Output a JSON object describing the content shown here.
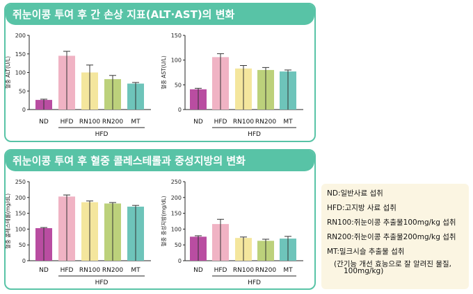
{
  "sections": [
    {
      "title": "쥐눈이콩 투여 후 간 손상 지표(ALT·AST)의 변화"
    },
    {
      "title": "쥐눈이콩 투여 후 혈중 콜레스테롤과 중성지방의 변화"
    }
  ],
  "legend": {
    "items": [
      "ND:일반사료 섭취",
      "HFD:고지방 사료 섭취",
      "RN100:쥐눈이콩 추출물100mg/kg 섭취",
      "RN200:쥐눈이콩 추출물200mg/kg 섭취",
      "MT:밀크시슬 추출물 섭취"
    ],
    "mt_note_1": "(간기능 개선 효능으로 잘 알려진 물질,",
    "mt_note_2": "100mg/kg)"
  },
  "chart_data": [
    {
      "type": "bar",
      "ylabel": "혈중 ALT(U/L)",
      "ylim": [
        0,
        200
      ],
      "yticks": [
        "0",
        "50",
        "100",
        "150",
        "200"
      ],
      "categories": [
        "ND",
        "HFD",
        "RN100",
        "RN200",
        "MT"
      ],
      "group_label": "HFD",
      "values": [
        26,
        145,
        100,
        82,
        70
      ],
      "errors": [
        2,
        12,
        20,
        10,
        3
      ],
      "colors": [
        "#b94da1",
        "#f0b3c4",
        "#f4e69d",
        "#bcd17b",
        "#6ec4ba"
      ]
    },
    {
      "type": "bar",
      "ylabel": "혈중 AST(U/L)",
      "ylim": [
        0,
        150
      ],
      "yticks": [
        "0",
        "50",
        "100",
        "150"
      ],
      "categories": [
        "ND",
        "HFD",
        "RN100",
        "RN200",
        "MT"
      ],
      "group_label": "HFD",
      "values": [
        41,
        106,
        83,
        80,
        77
      ],
      "errors": [
        2,
        7,
        6,
        5,
        3
      ],
      "colors": [
        "#b94da1",
        "#f0b3c4",
        "#f4e69d",
        "#bcd17b",
        "#6ec4ba"
      ]
    },
    {
      "type": "bar",
      "ylabel": "혈중 콜레스테롤(mg/dL)",
      "ylim": [
        0,
        250
      ],
      "yticks": [
        "0",
        "50",
        "100",
        "150",
        "200",
        "250"
      ],
      "categories": [
        "ND",
        "HFD",
        "RN100",
        "RN200",
        "MT"
      ],
      "group_label": "HFD",
      "values": [
        103,
        203,
        185,
        181,
        171
      ],
      "errors": [
        2,
        5,
        4,
        3,
        4
      ],
      "colors": [
        "#b94da1",
        "#f0b3c4",
        "#f4e69d",
        "#bcd17b",
        "#6ec4ba"
      ]
    },
    {
      "type": "bar",
      "ylabel": "혈중 중성지방(mg/dL)",
      "ylim": [
        0,
        250
      ],
      "yticks": [
        "0",
        "50",
        "100",
        "150",
        "200",
        "250"
      ],
      "categories": [
        "ND",
        "HFD",
        "RN100",
        "RN200",
        "MT"
      ],
      "group_label": "HFD",
      "values": [
        76,
        116,
        72,
        63,
        70
      ],
      "errors": [
        3,
        15,
        3,
        5,
        7
      ],
      "colors": [
        "#b94da1",
        "#f0b3c4",
        "#f4e69d",
        "#bcd17b",
        "#6ec4ba"
      ]
    }
  ]
}
